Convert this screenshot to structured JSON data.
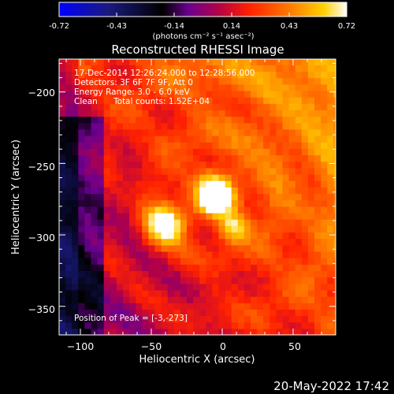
{
  "footer": {
    "date": "20-May-2022 17:42"
  },
  "colorbar": {
    "tick_labels": [
      "-0.72",
      "-0.43",
      "-0.14",
      "0.14",
      "0.43",
      "0.72"
    ],
    "unit": "(photons cm⁻² s⁻¹ asec⁻²)",
    "range": [
      -0.72,
      0.72
    ],
    "colors": [
      "#0000ff",
      "#000000",
      "#8800aa",
      "#ff2200",
      "#ffaa00",
      "#ffffff"
    ]
  },
  "chart_data": {
    "type": "heatmap",
    "title": "Reconstructed RHESSI Image",
    "xlabel": "Heliocentric X (arcsec)",
    "ylabel": "Heliocentric Y (arcsec)",
    "xlim": [
      -115,
      80
    ],
    "ylim": [
      -370,
      -177
    ],
    "x_ticks": [
      -100,
      -50,
      0,
      50
    ],
    "x_tick_labels": [
      "−100",
      "−50",
      "0",
      "50"
    ],
    "y_ticks": [
      -200,
      -250,
      -300,
      -350
    ],
    "y_tick_labels": [
      "−200",
      "−250",
      "−300",
      "−350"
    ],
    "sources": [
      {
        "x": -5,
        "y": -272,
        "peak": 0.72,
        "width": 10
      },
      {
        "x": -40,
        "y": -292,
        "peak": 0.62,
        "width": 10
      },
      {
        "x": 8,
        "y": -295,
        "peak": 0.38,
        "width": 7
      }
    ],
    "annotations": [
      "17-Dec-2014 12:26:24.000 to 12:28:56.000",
      "Detectors: 3F 6F 7F 9F, Att 0",
      "Energy Range: 3.0 - 6.0 keV",
      "Clean",
      "Total counts: 1.52E+04"
    ],
    "peak_label": "Position of Peak = [-3,-273]"
  }
}
